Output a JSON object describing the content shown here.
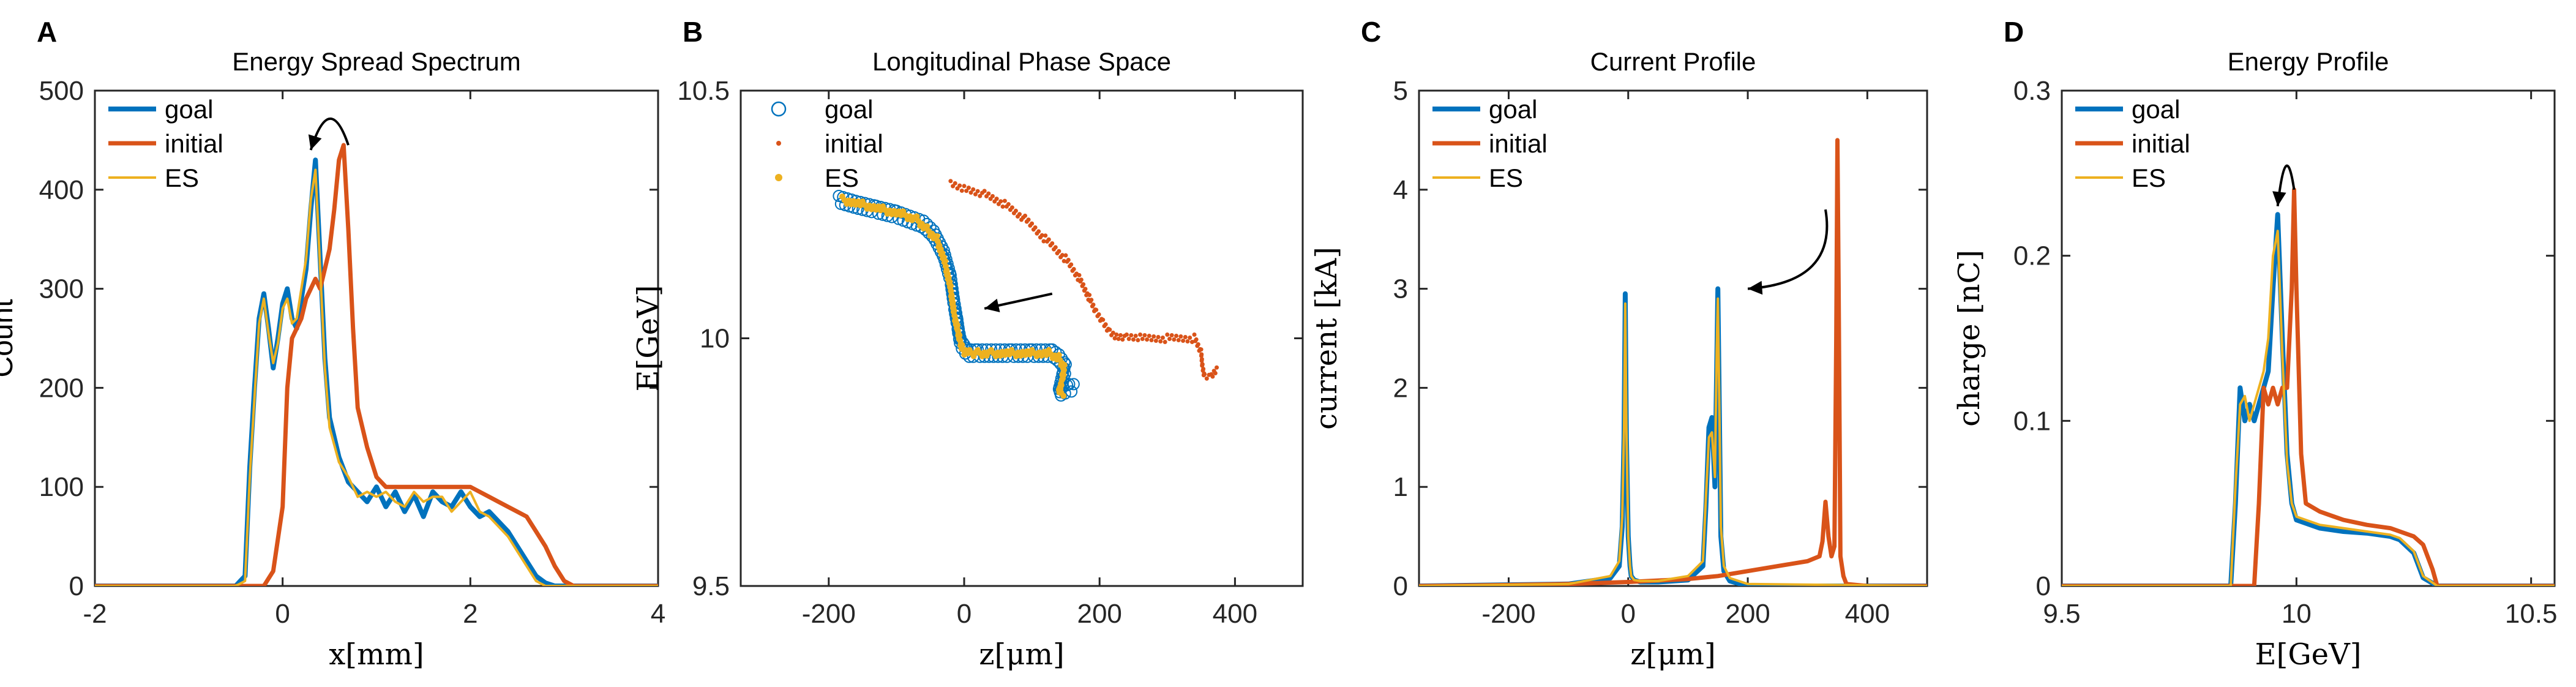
{
  "colors": {
    "goal": "#0072BD",
    "initial": "#D95319",
    "es": "#EDB120",
    "axis": "#262626",
    "annotation": "#000000"
  },
  "chart_data": [
    {
      "panel_label": "A",
      "type": "line",
      "title": "Energy Spread Spectrum",
      "xlabel": "x[mm]",
      "ylabel": "Count",
      "xlim": [
        -2,
        4
      ],
      "ylim": [
        0,
        500
      ],
      "xticks": [
        -2,
        0,
        2,
        4
      ],
      "xtick_labels": [
        "-2",
        "0",
        "2",
        "4"
      ],
      "yticks": [
        0,
        100,
        200,
        300,
        400,
        500
      ],
      "ytick_labels": [
        "0",
        "100",
        "200",
        "300",
        "400",
        "500"
      ],
      "legend": {
        "position": "top-left",
        "entries": [
          "goal",
          "initial",
          "ES"
        ]
      },
      "annotation": {
        "type": "curved-arrow",
        "description": "clockwise arc from initial peak toward goal peak",
        "from": [
          0.7,
          445
        ],
        "to": [
          0.3,
          440
        ]
      },
      "series": [
        {
          "name": "goal",
          "style": "line",
          "x": [
            -2.0,
            -0.5,
            -0.4,
            -0.35,
            -0.3,
            -0.25,
            -0.2,
            -0.15,
            -0.1,
            -0.05,
            0.0,
            0.05,
            0.1,
            0.15,
            0.2,
            0.25,
            0.3,
            0.35,
            0.4,
            0.45,
            0.5,
            0.6,
            0.7,
            0.8,
            0.9,
            1.0,
            1.1,
            1.2,
            1.3,
            1.4,
            1.5,
            1.6,
            1.7,
            1.8,
            1.9,
            2.0,
            2.1,
            2.2,
            2.3,
            2.4,
            2.5,
            2.6,
            2.7,
            2.8,
            2.9,
            3.0,
            4.0
          ],
          "y": [
            0,
            0,
            10,
            120,
            200,
            270,
            295,
            260,
            220,
            250,
            285,
            300,
            270,
            260,
            290,
            320,
            380,
            430,
            330,
            230,
            170,
            130,
            105,
            95,
            85,
            100,
            80,
            95,
            75,
            92,
            70,
            95,
            85,
            80,
            95,
            80,
            70,
            75,
            65,
            55,
            40,
            25,
            10,
            3,
            0,
            0,
            0
          ]
        },
        {
          "name": "initial",
          "style": "line",
          "x": [
            -2.0,
            -0.2,
            -0.1,
            0.0,
            0.05,
            0.1,
            0.15,
            0.2,
            0.25,
            0.3,
            0.35,
            0.4,
            0.45,
            0.5,
            0.55,
            0.6,
            0.65,
            0.7,
            0.75,
            0.8,
            0.9,
            1.0,
            1.1,
            1.2,
            1.3,
            1.4,
            1.5,
            1.6,
            1.7,
            1.8,
            1.9,
            2.0,
            2.1,
            2.2,
            2.3,
            2.4,
            2.5,
            2.6,
            2.7,
            2.8,
            2.9,
            3.0,
            3.1,
            4.0
          ],
          "y": [
            0,
            0,
            15,
            80,
            200,
            250,
            260,
            270,
            290,
            300,
            310,
            300,
            320,
            340,
            380,
            430,
            445,
            360,
            260,
            180,
            140,
            110,
            100,
            100,
            100,
            100,
            100,
            100,
            100,
            100,
            100,
            100,
            95,
            90,
            85,
            80,
            75,
            70,
            55,
            40,
            20,
            5,
            0,
            0
          ]
        },
        {
          "name": "ES",
          "style": "line",
          "x": [
            -2.0,
            -0.5,
            -0.4,
            -0.35,
            -0.3,
            -0.25,
            -0.2,
            -0.15,
            -0.1,
            -0.05,
            0.0,
            0.05,
            0.1,
            0.15,
            0.2,
            0.25,
            0.3,
            0.35,
            0.4,
            0.45,
            0.5,
            0.6,
            0.7,
            0.8,
            0.9,
            1.0,
            1.1,
            1.2,
            1.3,
            1.4,
            1.5,
            1.6,
            1.7,
            1.8,
            1.9,
            2.0,
            2.1,
            2.2,
            2.3,
            2.4,
            2.5,
            2.6,
            2.7,
            2.8,
            2.9,
            3.0,
            4.0
          ],
          "y": [
            0,
            0,
            5,
            110,
            190,
            265,
            290,
            255,
            225,
            245,
            280,
            290,
            265,
            270,
            300,
            330,
            390,
            420,
            320,
            220,
            160,
            125,
            110,
            90,
            95,
            90,
            95,
            85,
            80,
            95,
            85,
            90,
            90,
            75,
            85,
            95,
            75,
            70,
            60,
            50,
            35,
            20,
            5,
            0,
            0,
            0,
            0
          ]
        }
      ]
    },
    {
      "panel_label": "B",
      "type": "scatter",
      "title": "Longitudinal Phase Space",
      "xlabel": "z[μm]",
      "ylabel": "E[GeV]",
      "xlim": [
        -330,
        500
      ],
      "ylim": [
        9.5,
        10.5
      ],
      "xticks": [
        -200,
        0,
        200,
        400
      ],
      "xtick_labels": [
        "-200",
        "0",
        "200",
        "400"
      ],
      "yticks": [
        9.5,
        10,
        10.5
      ],
      "ytick_labels": [
        "9.5",
        "10",
        "10.5"
      ],
      "legend": {
        "position": "top-left",
        "entries": [
          "goal",
          "initial",
          "ES"
        ]
      },
      "annotation": {
        "type": "arrow",
        "description": "straight arrow from initial distribution toward goal",
        "from": [
          130,
          10.09
        ],
        "to": [
          30,
          10.06
        ]
      },
      "series": [
        {
          "name": "goal",
          "style": "open-circles",
          "x": [
            -185,
            -160,
            -130,
            -100,
            -80,
            -60,
            -45,
            -30,
            -20,
            -15,
            -10,
            -8,
            -5,
            0,
            5,
            10,
            20,
            40,
            70,
            100,
            130,
            140,
            150,
            145,
            140,
            155,
            165
          ],
          "y": [
            10.28,
            10.27,
            10.26,
            10.25,
            10.24,
            10.23,
            10.21,
            10.17,
            10.12,
            10.07,
            10.03,
            10.01,
            9.99,
            9.98,
            9.97,
            9.97,
            9.97,
            9.97,
            9.97,
            9.97,
            9.97,
            9.96,
            9.94,
            9.92,
            9.89,
            9.9,
            9.9
          ]
        },
        {
          "name": "initial",
          "style": "dots",
          "x": [
            -20,
            0,
            30,
            60,
            90,
            120,
            150,
            170,
            185,
            195,
            205,
            215,
            225,
            240,
            260,
            300,
            340,
            350,
            352,
            355,
            365,
            375
          ],
          "y": [
            10.31,
            10.3,
            10.29,
            10.27,
            10.24,
            10.2,
            10.16,
            10.12,
            10.08,
            10.05,
            10.03,
            10.01,
            10.0,
            10.0,
            10.0,
            10.0,
            10.0,
            9.97,
            9.94,
            9.92,
            9.92,
            9.94
          ]
        },
        {
          "name": "ES",
          "style": "dots",
          "x": [
            -180,
            -150,
            -120,
            -90,
            -70,
            -55,
            -40,
            -28,
            -20,
            -15,
            -10,
            -7,
            -3,
            2,
            8,
            20,
            40,
            70,
            100,
            125,
            140,
            148,
            145,
            140,
            150
          ],
          "y": [
            10.28,
            10.27,
            10.26,
            10.25,
            10.24,
            10.22,
            10.2,
            10.15,
            10.1,
            10.05,
            10.02,
            10.0,
            9.98,
            9.97,
            9.97,
            9.97,
            9.97,
            9.97,
            9.97,
            9.97,
            9.96,
            9.94,
            9.92,
            9.89,
            9.89
          ]
        }
      ]
    },
    {
      "panel_label": "C",
      "type": "line",
      "title": "Current Profile",
      "xlabel": "z[μm]",
      "ylabel": "current [kA]",
      "xlim": [
        -350,
        500
      ],
      "ylim": [
        0,
        5
      ],
      "xticks": [
        -200,
        0,
        200,
        400
      ],
      "xtick_labels": [
        "-200",
        "0",
        "200",
        "400"
      ],
      "yticks": [
        0,
        1,
        2,
        3,
        4,
        5
      ],
      "ytick_labels": [
        "0",
        "1",
        "2",
        "3",
        "4",
        "5"
      ],
      "legend": {
        "position": "top-left",
        "entries": [
          "goal",
          "initial",
          "ES"
        ]
      },
      "annotation": {
        "type": "curved-arrow",
        "description": "arc from initial spike toward goal spike",
        "from": [
          330,
          3.8
        ],
        "to": [
          200,
          3.0
        ]
      },
      "series": [
        {
          "name": "goal",
          "style": "line",
          "x": [
            -350,
            -100,
            -30,
            -15,
            -10,
            -7,
            -5,
            -3,
            0,
            3,
            5,
            10,
            20,
            50,
            100,
            125,
            130,
            135,
            140,
            145,
            148,
            150,
            152,
            155,
            160,
            170,
            200,
            500
          ],
          "y": [
            0,
            0.02,
            0.08,
            0.2,
            0.6,
            1.5,
            2.95,
            1.5,
            0.5,
            0.2,
            0.1,
            0.06,
            0.04,
            0.04,
            0.06,
            0.2,
            0.8,
            1.6,
            1.7,
            1.0,
            2.2,
            3.0,
            2.0,
            0.5,
            0.15,
            0.05,
            0,
            0
          ]
        },
        {
          "name": "initial",
          "style": "line",
          "x": [
            -350,
            -200,
            -100,
            0,
            100,
            150,
            200,
            250,
            300,
            320,
            325,
            330,
            335,
            340,
            345,
            348,
            350,
            352,
            355,
            360,
            365,
            400,
            500
          ],
          "y": [
            0,
            0.01,
            0.02,
            0.04,
            0.07,
            0.1,
            0.15,
            0.2,
            0.25,
            0.3,
            0.45,
            0.85,
            0.5,
            0.3,
            0.4,
            2.5,
            4.5,
            3.0,
            0.3,
            0.1,
            0.02,
            0,
            0
          ]
        },
        {
          "name": "ES",
          "style": "line",
          "x": [
            -350,
            -100,
            -30,
            -15,
            -10,
            -7,
            -5,
            -3,
            0,
            3,
            5,
            10,
            20,
            50,
            100,
            125,
            130,
            135,
            140,
            145,
            148,
            150,
            152,
            155,
            160,
            170,
            200,
            500
          ],
          "y": [
            0,
            0.02,
            0.1,
            0.25,
            0.7,
            1.6,
            2.85,
            1.6,
            0.5,
            0.2,
            0.1,
            0.06,
            0.05,
            0.05,
            0.1,
            0.25,
            0.9,
            1.5,
            1.55,
            1.1,
            2.4,
            2.9,
            2.0,
            0.6,
            0.2,
            0.08,
            0.02,
            0
          ]
        }
      ]
    },
    {
      "panel_label": "D",
      "type": "line",
      "title": "Energy Profile",
      "xlabel": "E[GeV]",
      "ylabel": "charge [nC]",
      "xlim": [
        9.5,
        10.55
      ],
      "ylim": [
        0,
        0.3
      ],
      "xticks": [
        9.5,
        10,
        10.5
      ],
      "xtick_labels": [
        "9.5",
        "10",
        "10.5"
      ],
      "yticks": [
        0,
        0.1,
        0.2,
        0.3
      ],
      "ytick_labels": [
        "0",
        "0.1",
        "0.2",
        "0.3"
      ],
      "legend": {
        "position": "top-left",
        "entries": [
          "goal",
          "initial",
          "ES"
        ]
      },
      "annotation": {
        "type": "curved-arrow",
        "description": "loop arrow from initial peak to goal peak",
        "from": [
          9.995,
          0.24
        ],
        "to": [
          9.96,
          0.23
        ]
      },
      "series": [
        {
          "name": "goal",
          "style": "line",
          "x": [
            9.5,
            9.86,
            9.87,
            9.88,
            9.89,
            9.9,
            9.91,
            9.92,
            9.93,
            9.94,
            9.95,
            9.96,
            9.97,
            9.98,
            9.99,
            10.0,
            10.05,
            10.1,
            10.15,
            10.2,
            10.22,
            10.25,
            10.27,
            10.3,
            10.55
          ],
          "y": [
            0,
            0,
            0.05,
            0.12,
            0.1,
            0.11,
            0.1,
            0.11,
            0.12,
            0.13,
            0.18,
            0.225,
            0.15,
            0.08,
            0.05,
            0.04,
            0.035,
            0.033,
            0.032,
            0.03,
            0.028,
            0.02,
            0.005,
            0,
            0
          ]
        },
        {
          "name": "initial",
          "style": "line",
          "x": [
            9.5,
            9.91,
            9.92,
            9.93,
            9.94,
            9.95,
            9.96,
            9.97,
            9.98,
            9.99,
            9.995,
            10.0,
            10.01,
            10.02,
            10.05,
            10.1,
            10.15,
            10.2,
            10.25,
            10.27,
            10.29,
            10.3,
            10.55
          ],
          "y": [
            0,
            0,
            0.05,
            0.12,
            0.11,
            0.12,
            0.11,
            0.12,
            0.12,
            0.18,
            0.24,
            0.18,
            0.08,
            0.05,
            0.045,
            0.04,
            0.037,
            0.035,
            0.03,
            0.025,
            0.01,
            0,
            0
          ]
        },
        {
          "name": "ES",
          "style": "line",
          "x": [
            9.5,
            9.86,
            9.87,
            9.88,
            9.89,
            9.9,
            9.91,
            9.92,
            9.93,
            9.94,
            9.95,
            9.96,
            9.97,
            9.98,
            9.99,
            10.0,
            10.05,
            10.1,
            10.15,
            10.2,
            10.22,
            10.25,
            10.27,
            10.3,
            10.55
          ],
          "y": [
            0,
            0,
            0.06,
            0.11,
            0.115,
            0.1,
            0.11,
            0.12,
            0.13,
            0.15,
            0.2,
            0.215,
            0.14,
            0.075,
            0.05,
            0.042,
            0.037,
            0.035,
            0.033,
            0.031,
            0.029,
            0.021,
            0.006,
            0,
            0
          ]
        }
      ]
    }
  ]
}
